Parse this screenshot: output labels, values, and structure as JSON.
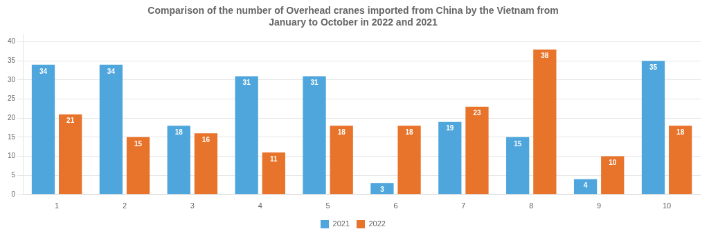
{
  "chart_data": {
    "type": "bar",
    "title": "Comparison of the number of Overhead cranes imported from China by the Vietnam from\nJanuary to October in 2022 and 2021",
    "categories": [
      "1",
      "2",
      "3",
      "4",
      "5",
      "6",
      "7",
      "8",
      "9",
      "10"
    ],
    "series": [
      {
        "name": "2021",
        "color": "#4EA6DC",
        "values": [
          34,
          34,
          18,
          31,
          31,
          3,
          19,
          15,
          4,
          35
        ]
      },
      {
        "name": "2022",
        "color": "#E8732A",
        "values": [
          21,
          15,
          16,
          11,
          18,
          18,
          23,
          38,
          10,
          18
        ]
      }
    ],
    "ylim": [
      0,
      42
    ],
    "yticks": [
      0,
      5,
      10,
      15,
      20,
      25,
      30,
      35,
      40
    ],
    "grid": true,
    "legend": "bottom",
    "data_labels": true
  }
}
